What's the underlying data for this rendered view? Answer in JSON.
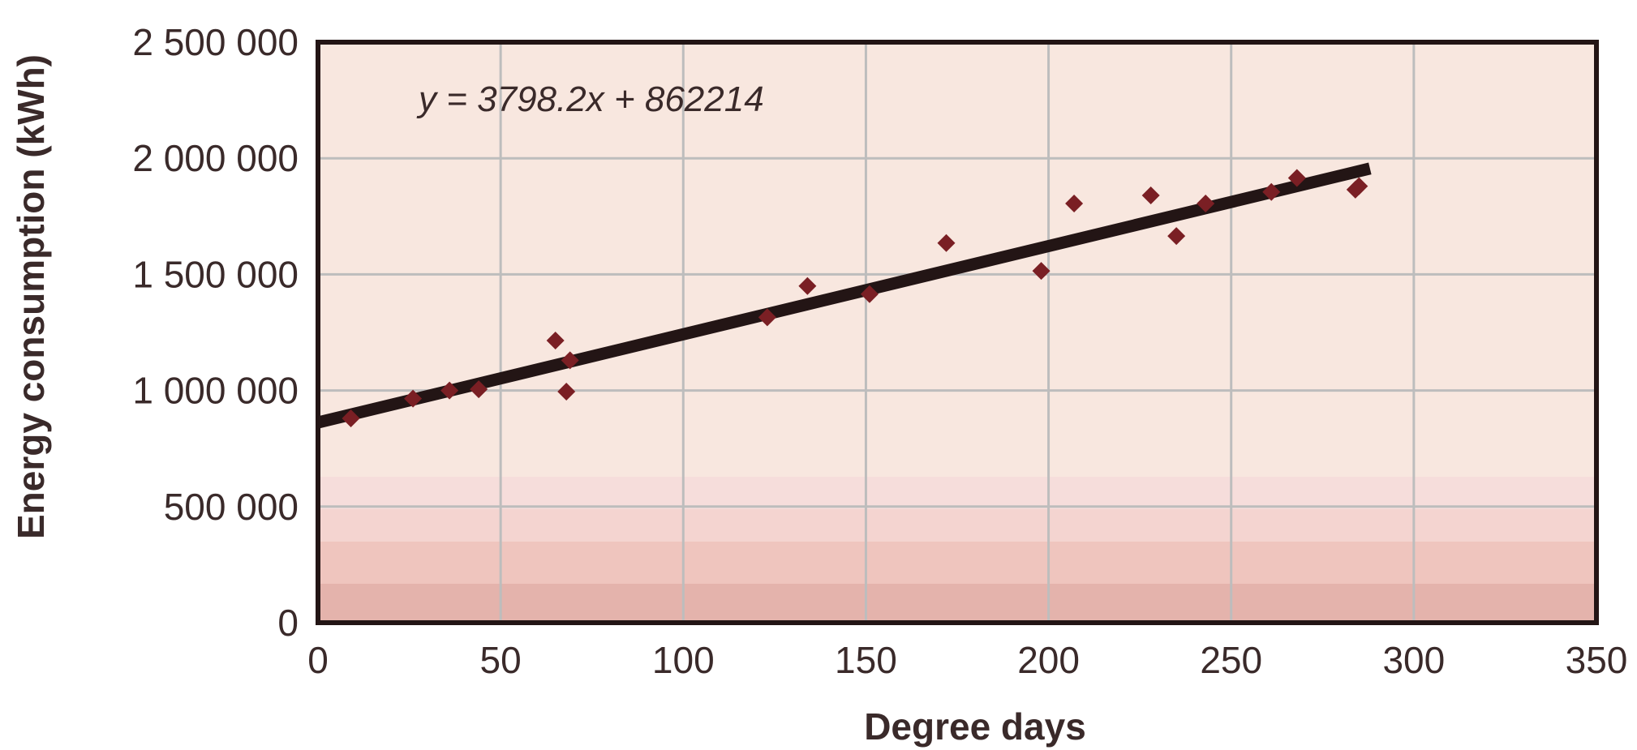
{
  "chart_data": {
    "type": "scatter",
    "xlabel": "Degree days",
    "ylabel": "Energy consumption (kWh)",
    "annotation": "y = 3798.2x + 862214",
    "xlim": [
      0,
      350
    ],
    "ylim": [
      0,
      2500000
    ],
    "xticks": [
      0,
      50,
      100,
      150,
      200,
      250,
      300,
      350
    ],
    "yticks": [
      0,
      500000,
      1000000,
      1500000,
      2000000,
      2500000
    ],
    "xtick_labels": [
      "0",
      "50",
      "100",
      "150",
      "200",
      "250",
      "300",
      "350"
    ],
    "ytick_labels": [
      "0",
      "500 000",
      "1 000 000",
      "1 500 000",
      "2 000 000",
      "2 500 000"
    ],
    "grid": true,
    "points": [
      {
        "x": 9,
        "y": 880000
      },
      {
        "x": 26,
        "y": 965000
      },
      {
        "x": 36,
        "y": 1000000
      },
      {
        "x": 44,
        "y": 1005000
      },
      {
        "x": 65,
        "y": 1215000
      },
      {
        "x": 69,
        "y": 1130000
      },
      {
        "x": 68,
        "y": 995000
      },
      {
        "x": 123,
        "y": 1315000
      },
      {
        "x": 134,
        "y": 1450000
      },
      {
        "x": 151,
        "y": 1415000
      },
      {
        "x": 172,
        "y": 1635000
      },
      {
        "x": 198,
        "y": 1515000
      },
      {
        "x": 207,
        "y": 1805000
      },
      {
        "x": 228,
        "y": 1840000
      },
      {
        "x": 235,
        "y": 1665000
      },
      {
        "x": 243,
        "y": 1805000
      },
      {
        "x": 261,
        "y": 1855000
      },
      {
        "x": 268,
        "y": 1915000
      },
      {
        "x": 284,
        "y": 1865000
      },
      {
        "x": 285,
        "y": 1880000
      }
    ],
    "trendline": {
      "slope": 3798.2,
      "intercept": 862214,
      "x_start": 0,
      "x_end": 288
    },
    "colors": {
      "marker": "#7a1f24",
      "trendline": "#231515",
      "frame": "#231515",
      "grid": "#bdbdbd",
      "plot_bg": "#f8e7df"
    }
  }
}
